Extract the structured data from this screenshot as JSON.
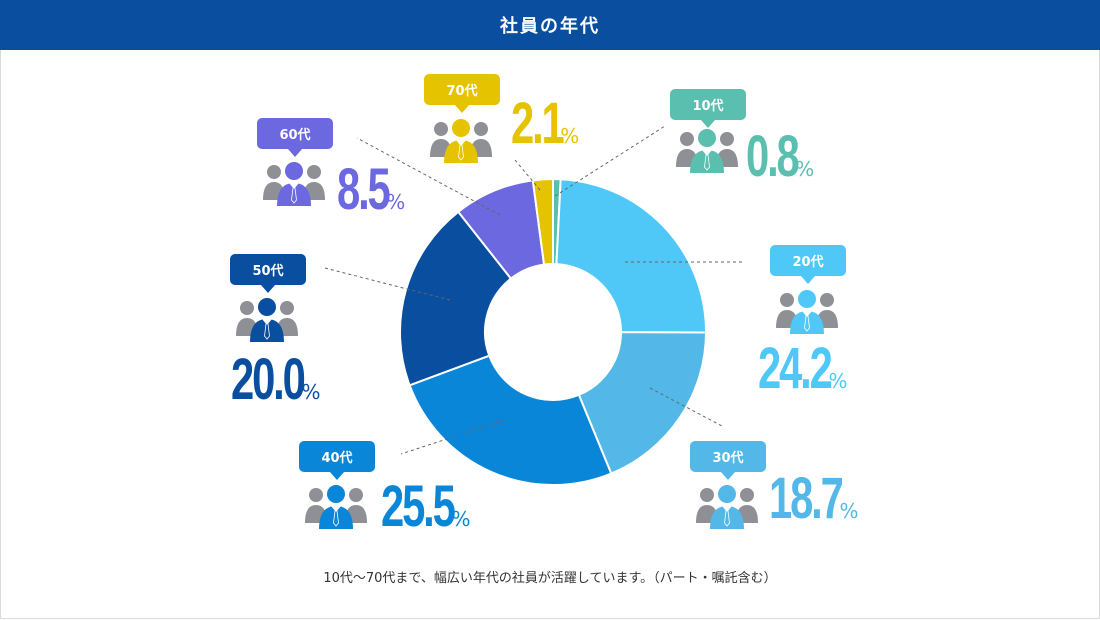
{
  "header": {
    "title": "社員の年代"
  },
  "chart_data": {
    "type": "pie",
    "title": "社員の年代",
    "unit": "%",
    "categories": [
      "10代",
      "20代",
      "30代",
      "40代",
      "50代",
      "60代",
      "70代"
    ],
    "values": [
      0.8,
      24.2,
      18.7,
      25.5,
      20.0,
      8.5,
      2.1
    ],
    "value_labels": [
      "0.8",
      "24.2",
      "18.7",
      "25.5",
      "20.0",
      "8.5",
      "2.1"
    ],
    "colors": [
      "#5bbfb0",
      "#4fc8f8",
      "#53b8e8",
      "#0a86d8",
      "#0a4ea0",
      "#6b68e0",
      "#e6c300"
    ],
    "legend": "callouts"
  },
  "footnote": "10代〜70代まで、幅広い年代の社員が活躍しています。（パート・嘱託含む）",
  "icons": {
    "person": "people-group-icon"
  }
}
